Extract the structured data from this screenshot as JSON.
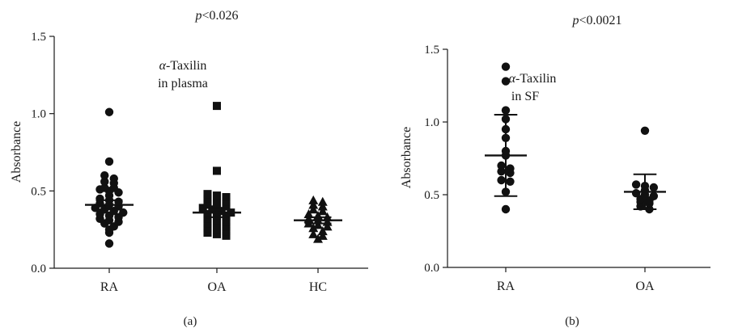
{
  "chart_data": [
    {
      "type": "scatter",
      "panel_label": "(a)",
      "pvalue_text": {
        "italic": "p",
        "rest": "<0.026"
      },
      "annotation": [
        "α-Taxilin",
        "in plasma"
      ],
      "annotation_greek": "α",
      "annotation_rest": "-Taxilin",
      "annotation_line2": "in plasma",
      "ylabel": "Absorbance",
      "ylim": [
        0,
        1.5
      ],
      "yticks": [
        0.0,
        0.5,
        1.0,
        1.5
      ],
      "ytick_labels": [
        "0.0",
        "0.5",
        "1.0",
        "1.5"
      ],
      "categories": [
        "RA",
        "OA",
        "HC"
      ],
      "groups": [
        {
          "category": "RA",
          "marker": "circle",
          "points": [
            1.01,
            0.69,
            0.6,
            0.58,
            0.56,
            0.55,
            0.52,
            0.52,
            0.51,
            0.5,
            0.49,
            0.47,
            0.45,
            0.44,
            0.43,
            0.42,
            0.41,
            0.4,
            0.39,
            0.38,
            0.37,
            0.36,
            0.35,
            0.34,
            0.33,
            0.32,
            0.31,
            0.3,
            0.29,
            0.27,
            0.25,
            0.23,
            0.16
          ],
          "mean": 0.41,
          "sem": 0.03
        },
        {
          "category": "OA",
          "marker": "square",
          "points": [
            1.05,
            0.63,
            0.48,
            0.47,
            0.46,
            0.45,
            0.44,
            0.43,
            0.42,
            0.41,
            0.4,
            0.39,
            0.38,
            0.37,
            0.36,
            0.35,
            0.34,
            0.33,
            0.32,
            0.31,
            0.3,
            0.29,
            0.28,
            0.27,
            0.26,
            0.25,
            0.24,
            0.23,
            0.22,
            0.21
          ],
          "mean": 0.36,
          "sem": 0.03
        },
        {
          "category": "HC",
          "marker": "triangle",
          "points": [
            0.44,
            0.43,
            0.41,
            0.4,
            0.38,
            0.37,
            0.35,
            0.34,
            0.33,
            0.32,
            0.31,
            0.3,
            0.29,
            0.28,
            0.27,
            0.26,
            0.24,
            0.22,
            0.21,
            0.19
          ],
          "mean": 0.31,
          "sem": 0.02
        }
      ]
    },
    {
      "type": "scatter",
      "panel_label": "(b)",
      "pvalue_text": {
        "italic": "p",
        "rest": "<0.0021"
      },
      "annotation": [
        "α-Taxilin",
        "in SF"
      ],
      "annotation_greek": "α",
      "annotation_rest": "-Taxilin",
      "annotation_line2": "in SF",
      "ylabel": "Absorbance",
      "ylim": [
        0,
        1.5
      ],
      "yticks": [
        0.0,
        0.5,
        1.0,
        1.5
      ],
      "ytick_labels": [
        "0.0",
        "0.5",
        "1.0",
        "1.5"
      ],
      "categories": [
        "RA",
        "OA"
      ],
      "groups": [
        {
          "category": "RA",
          "marker": "circle",
          "points": [
            1.38,
            1.28,
            1.08,
            1.02,
            0.95,
            0.89,
            0.8,
            0.77,
            0.7,
            0.68,
            0.66,
            0.65,
            0.6,
            0.59,
            0.52,
            0.4
          ],
          "mean": 0.77,
          "sd": 0.28
        },
        {
          "category": "OA",
          "marker": "circle",
          "points": [
            0.94,
            0.57,
            0.56,
            0.55,
            0.53,
            0.51,
            0.5,
            0.49,
            0.47,
            0.46,
            0.45,
            0.44,
            0.42,
            0.4
          ],
          "mean": 0.52,
          "sd": 0.12
        }
      ]
    }
  ]
}
